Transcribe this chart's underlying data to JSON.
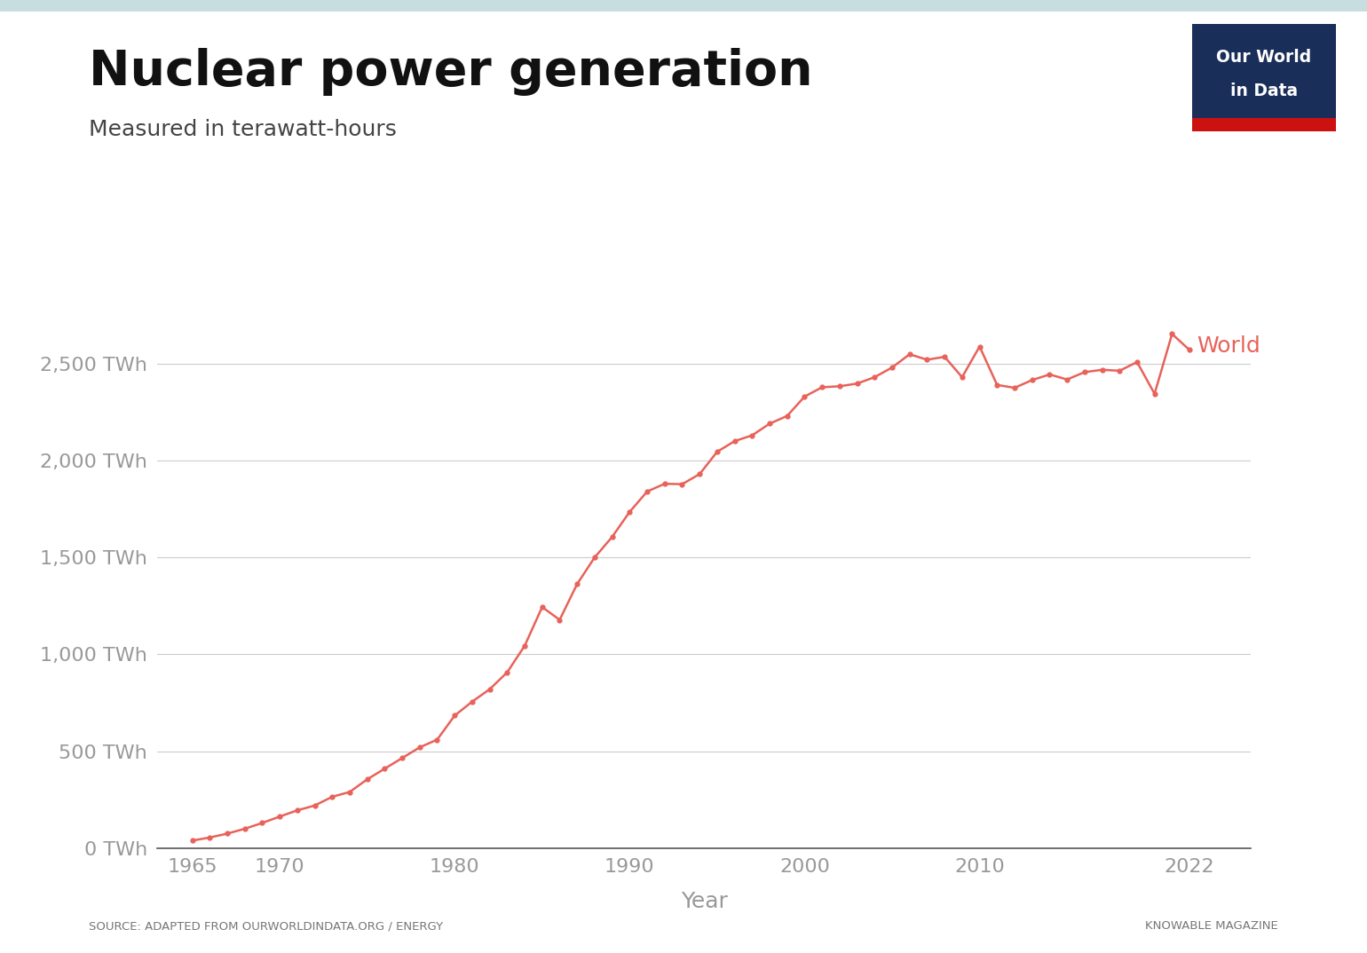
{
  "title": "Nuclear power generation",
  "subtitle": "Measured in terawatt-hours",
  "xlabel": "Year",
  "ylabel": "",
  "line_color": "#E8625A",
  "background_color": "#ffffff",
  "top_bar_color": "#c8dde0",
  "owid_box_color": "#1a2e5a",
  "source_text": "SOURCE: ADAPTED FROM OURWORLDINDATA.ORG / ENERGY",
  "credit_text": "KNOWABLE MAGAZINE",
  "series_label": "World",
  "ytick_labels": [
    "0 TWh",
    "500 TWh",
    "1,000 TWh",
    "1,500 TWh",
    "2,000 TWh",
    "2,500 TWh"
  ],
  "ytick_values": [
    0,
    500,
    1000,
    1500,
    2000,
    2500
  ],
  "xtick_labels": [
    "1965",
    "1970",
    "1980",
    "1990",
    "2000",
    "2010",
    "2022"
  ],
  "xtick_values": [
    1965,
    1970,
    1980,
    1990,
    2000,
    2010,
    2022
  ],
  "years": [
    1965,
    1966,
    1967,
    1968,
    1969,
    1970,
    1971,
    1972,
    1973,
    1974,
    1975,
    1976,
    1977,
    1978,
    1979,
    1980,
    1981,
    1982,
    1983,
    1984,
    1985,
    1986,
    1987,
    1988,
    1989,
    1990,
    1991,
    1992,
    1993,
    1994,
    1995,
    1996,
    1997,
    1998,
    1999,
    2000,
    2001,
    2002,
    2003,
    2004,
    2005,
    2006,
    2007,
    2008,
    2009,
    2010,
    2011,
    2012,
    2013,
    2014,
    2015,
    2016,
    2017,
    2018,
    2019,
    2020,
    2021,
    2022
  ],
  "values": [
    39,
    55,
    75,
    100,
    130,
    163,
    195,
    220,
    265,
    290,
    355,
    410,
    465,
    520,
    560,
    684,
    756,
    820,
    907,
    1044,
    1244,
    1178,
    1363,
    1500,
    1606,
    1735,
    1840,
    1880,
    1878,
    1930,
    2045,
    2100,
    2130,
    2190,
    2230,
    2330,
    2378,
    2383,
    2397,
    2430,
    2480,
    2548,
    2520,
    2535,
    2430,
    2588,
    2390,
    2375,
    2415,
    2444,
    2418,
    2456,
    2468,
    2463,
    2508,
    2344,
    2653,
    2570
  ],
  "ylim": [
    0,
    2950
  ],
  "xlim": [
    1963,
    2025.5
  ]
}
